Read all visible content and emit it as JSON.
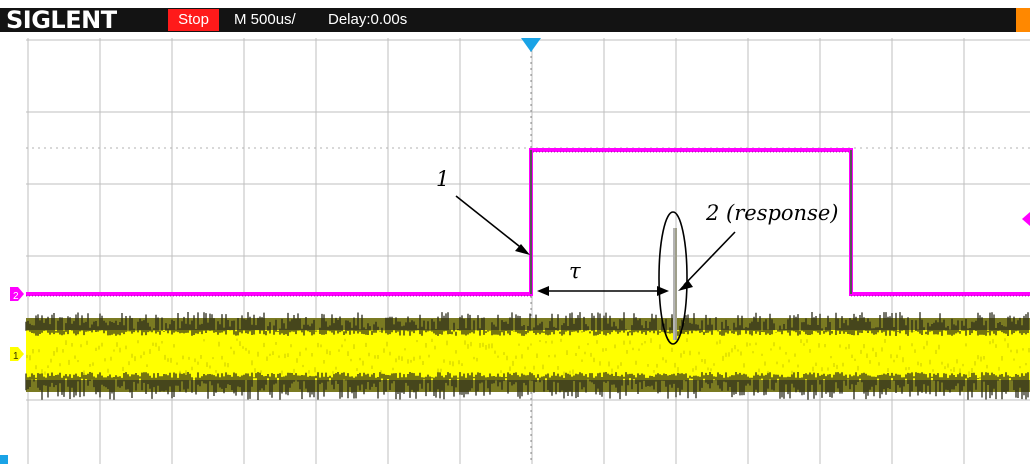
{
  "header": {
    "brand": "SIGLENT",
    "run_state": "Stop",
    "timebase": "M 500us/",
    "delay": "Delay:0.00s"
  },
  "annotations": {
    "label_1": "1",
    "label_2": "2 (response)",
    "label_tau": "τ"
  },
  "channels": {
    "ch1": {
      "marker": "1",
      "color": "#ffff00"
    },
    "ch2": {
      "marker": "2",
      "color": "#ff00ff"
    }
  },
  "colors": {
    "header_bg": "#131313",
    "stop_bg": "#ff1a1a",
    "grid": "#bfbfbf",
    "ch2_trace": "#ff00ff",
    "ch1_trace": "#ffff00",
    "noise_dark": "#2b2b1a",
    "trigger_marker": "#1aa3e6",
    "trigger_level_marker": "#ff00ff"
  },
  "icons": {
    "trigger_position": "triangle-down-icon",
    "ch2_marker": "ch2-level-marker-icon",
    "ch1_marker": "ch1-level-marker-icon",
    "trigger_level": "trigger-level-marker-icon"
  }
}
